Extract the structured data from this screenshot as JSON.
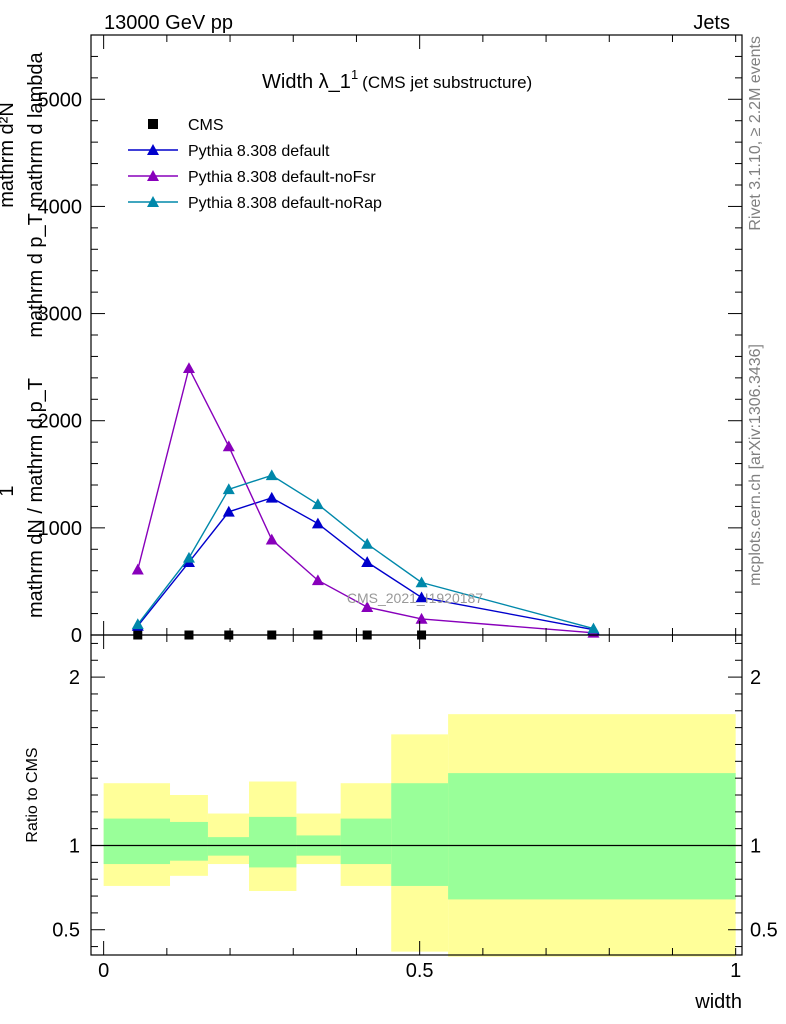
{
  "header": {
    "left": "13000 GeV pp",
    "right": "Jets"
  },
  "side_labels": {
    "rivet": "Rivet 3.1.10, ≥ 2.2M events",
    "mcplots": "mcplots.cern.ch [arXiv:1306.3436]"
  },
  "watermark": "CMS_2021_I1920187",
  "chart_data": [
    {
      "type": "line",
      "title": "Width λ_1",
      "title_sup": "1",
      "subtitle": "(CMS jet substructure)",
      "ylabel_numerator": "mathrm d²N",
      "ylabel_denominator": "mathrm d p_T mathrm d lambda",
      "ylabel_prefactor_num": "1",
      "ylabel_prefactor_den": "mathrm dN / mathrm d p_T",
      "xlim": [
        -0.02,
        1.01
      ],
      "ylim": [
        0,
        5600
      ],
      "y_ticks": [
        0,
        1000,
        2000,
        3000,
        4000,
        5000
      ],
      "y_tick_labels": [
        "0",
        "1000",
        "2000",
        "3000",
        "4000",
        "5000"
      ],
      "legend_position": "top-left",
      "series": [
        {
          "name": "CMS",
          "marker": "square",
          "color": "#000000",
          "x": [
            0.054,
            0.135,
            0.198,
            0.266,
            0.339,
            0.417,
            0.503
          ],
          "y": [
            0,
            0,
            0,
            0,
            0,
            0,
            0
          ]
        },
        {
          "name": "Pythia 8.308 default",
          "marker": "triangle",
          "color": "#0000cc",
          "x": [
            0.054,
            0.135,
            0.198,
            0.266,
            0.339,
            0.417,
            0.503,
            0.775
          ],
          "y": [
            85,
            680,
            1150,
            1280,
            1040,
            680,
            350,
            50
          ]
        },
        {
          "name": "Pythia 8.308 default-noFsr",
          "marker": "triangle",
          "color": "#8800bb",
          "x": [
            0.054,
            0.135,
            0.198,
            0.266,
            0.339,
            0.417,
            0.503,
            0.775
          ],
          "y": [
            610,
            2490,
            1760,
            890,
            510,
            260,
            150,
            20
          ]
        },
        {
          "name": "Pythia 8.308 default-noRap",
          "marker": "triangle",
          "color": "#0088aa",
          "x": [
            0.054,
            0.135,
            0.198,
            0.266,
            0.339,
            0.417,
            0.503,
            0.775
          ],
          "y": [
            100,
            720,
            1360,
            1490,
            1220,
            850,
            490,
            60
          ]
        }
      ]
    },
    {
      "type": "area",
      "ylabel": "Ratio to CMS",
      "xlabel": "width",
      "xlim": [
        -0.02,
        1.01
      ],
      "ylim": [
        0.35,
        2.25
      ],
      "x_ticks": [
        0,
        0.5,
        1
      ],
      "x_tick_labels": [
        "0",
        "0.5",
        "1"
      ],
      "y_ticks": [
        0.5,
        1,
        2
      ],
      "y_tick_labels": [
        "0.5",
        "1",
        "2"
      ],
      "bins": [
        {
          "x0": 0.0,
          "x1": 0.105,
          "stat_lo": 0.89,
          "stat_hi": 1.16,
          "tot_lo": 0.76,
          "tot_hi": 1.37
        },
        {
          "x0": 0.105,
          "x1": 0.165,
          "stat_lo": 0.91,
          "stat_hi": 1.14,
          "tot_lo": 0.82,
          "tot_hi": 1.3
        },
        {
          "x0": 0.165,
          "x1": 0.23,
          "stat_lo": 0.94,
          "stat_hi": 1.05,
          "tot_lo": 0.89,
          "tot_hi": 1.19
        },
        {
          "x0": 0.23,
          "x1": 0.305,
          "stat_lo": 0.87,
          "stat_hi": 1.17,
          "tot_lo": 0.73,
          "tot_hi": 1.38
        },
        {
          "x0": 0.305,
          "x1": 0.375,
          "stat_lo": 0.94,
          "stat_hi": 1.06,
          "tot_lo": 0.89,
          "tot_hi": 1.19
        },
        {
          "x0": 0.375,
          "x1": 0.455,
          "stat_lo": 0.89,
          "stat_hi": 1.16,
          "tot_lo": 0.76,
          "tot_hi": 1.37
        },
        {
          "x0": 0.455,
          "x1": 0.545,
          "stat_lo": 0.76,
          "stat_hi": 1.37,
          "tot_lo": 0.37,
          "tot_hi": 1.66
        },
        {
          "x0": 0.545,
          "x1": 1.0,
          "stat_lo": 0.68,
          "stat_hi": 1.43,
          "tot_lo": 0.34,
          "tot_hi": 1.78
        }
      ],
      "colors": {
        "stat": "#99ff99",
        "total": "#ffff99"
      }
    }
  ]
}
